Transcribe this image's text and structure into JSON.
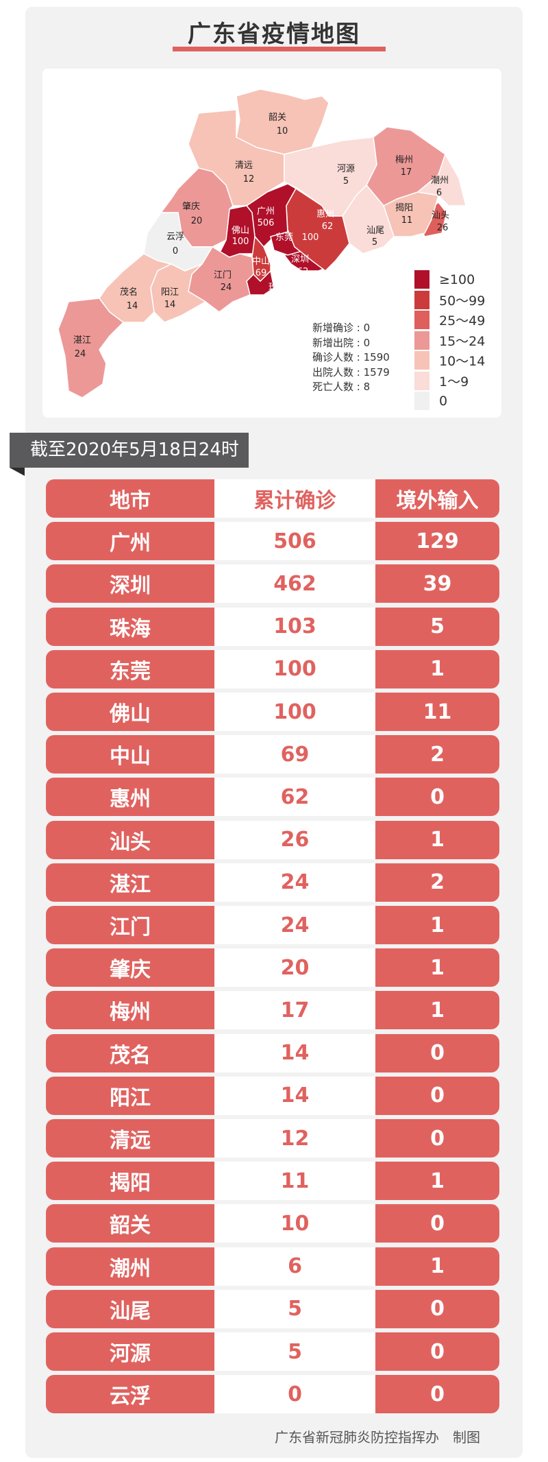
{
  "title": "广东省疫情地图",
  "colors": {
    "accent": "#e0625f",
    "bins": [
      "#b0102a",
      "#cc3b3b",
      "#de5f5c",
      "#ec9897",
      "#f6c3b6",
      "#fadcd8",
      "#f0f0f0"
    ]
  },
  "map": {
    "regions": [
      {
        "name": "广州",
        "value": "506"
      },
      {
        "name": "深圳",
        "value": "462"
      },
      {
        "name": "珠海",
        "value": "103"
      },
      {
        "name": "东莞",
        "value": "100"
      },
      {
        "name": "佛山",
        "value": "100"
      },
      {
        "name": "中山",
        "value": "69"
      },
      {
        "name": "惠州",
        "value": "62"
      },
      {
        "name": "汕头",
        "value": "26"
      },
      {
        "name": "湛江",
        "value": "24"
      },
      {
        "name": "江门",
        "value": "24"
      },
      {
        "name": "肇庆",
        "value": "20"
      },
      {
        "name": "梅州",
        "value": "17"
      },
      {
        "name": "茂名",
        "value": "14"
      },
      {
        "name": "阳江",
        "value": "14"
      },
      {
        "name": "清远",
        "value": "12"
      },
      {
        "name": "揭阳",
        "value": "11"
      },
      {
        "name": "韶关",
        "value": "10"
      },
      {
        "name": "潮州",
        "value": "6"
      },
      {
        "name": "汕尾",
        "value": "5"
      },
      {
        "name": "河源",
        "value": "5"
      },
      {
        "name": "云浮",
        "value": "0"
      }
    ],
    "stats": [
      {
        "label": "新增确诊",
        "value": "0"
      },
      {
        "label": "新增出院",
        "value": "0"
      },
      {
        "label": "确诊人数",
        "value": "1590"
      },
      {
        "label": "出院人数",
        "value": "1579"
      },
      {
        "label": "死亡人数",
        "value": "8"
      }
    ],
    "legend": [
      "≥100",
      "50～99",
      "25～49",
      "15～24",
      "10～14",
      "1～9",
      "0"
    ]
  },
  "date_banner": "截至2020年5月18日24时",
  "table": {
    "headers": [
      "地市",
      "累计确诊",
      "境外输入"
    ],
    "rows": [
      [
        "广州",
        "506",
        "129"
      ],
      [
        "深圳",
        "462",
        "39"
      ],
      [
        "珠海",
        "103",
        "5"
      ],
      [
        "东莞",
        "100",
        "1"
      ],
      [
        "佛山",
        "100",
        "11"
      ],
      [
        "中山",
        "69",
        "2"
      ],
      [
        "惠州",
        "62",
        "0"
      ],
      [
        "汕头",
        "26",
        "1"
      ],
      [
        "湛江",
        "24",
        "2"
      ],
      [
        "江门",
        "24",
        "1"
      ],
      [
        "肇庆",
        "20",
        "1"
      ],
      [
        "梅州",
        "17",
        "1"
      ],
      [
        "茂名",
        "14",
        "0"
      ],
      [
        "阳江",
        "14",
        "0"
      ],
      [
        "清远",
        "12",
        "0"
      ],
      [
        "揭阳",
        "11",
        "1"
      ],
      [
        "韶关",
        "10",
        "0"
      ],
      [
        "潮州",
        "6",
        "1"
      ],
      [
        "汕尾",
        "5",
        "0"
      ],
      [
        "河源",
        "5",
        "0"
      ],
      [
        "云浮",
        "0",
        "0"
      ]
    ]
  },
  "footer": "广东省新冠肺炎防控指挥办　制图"
}
